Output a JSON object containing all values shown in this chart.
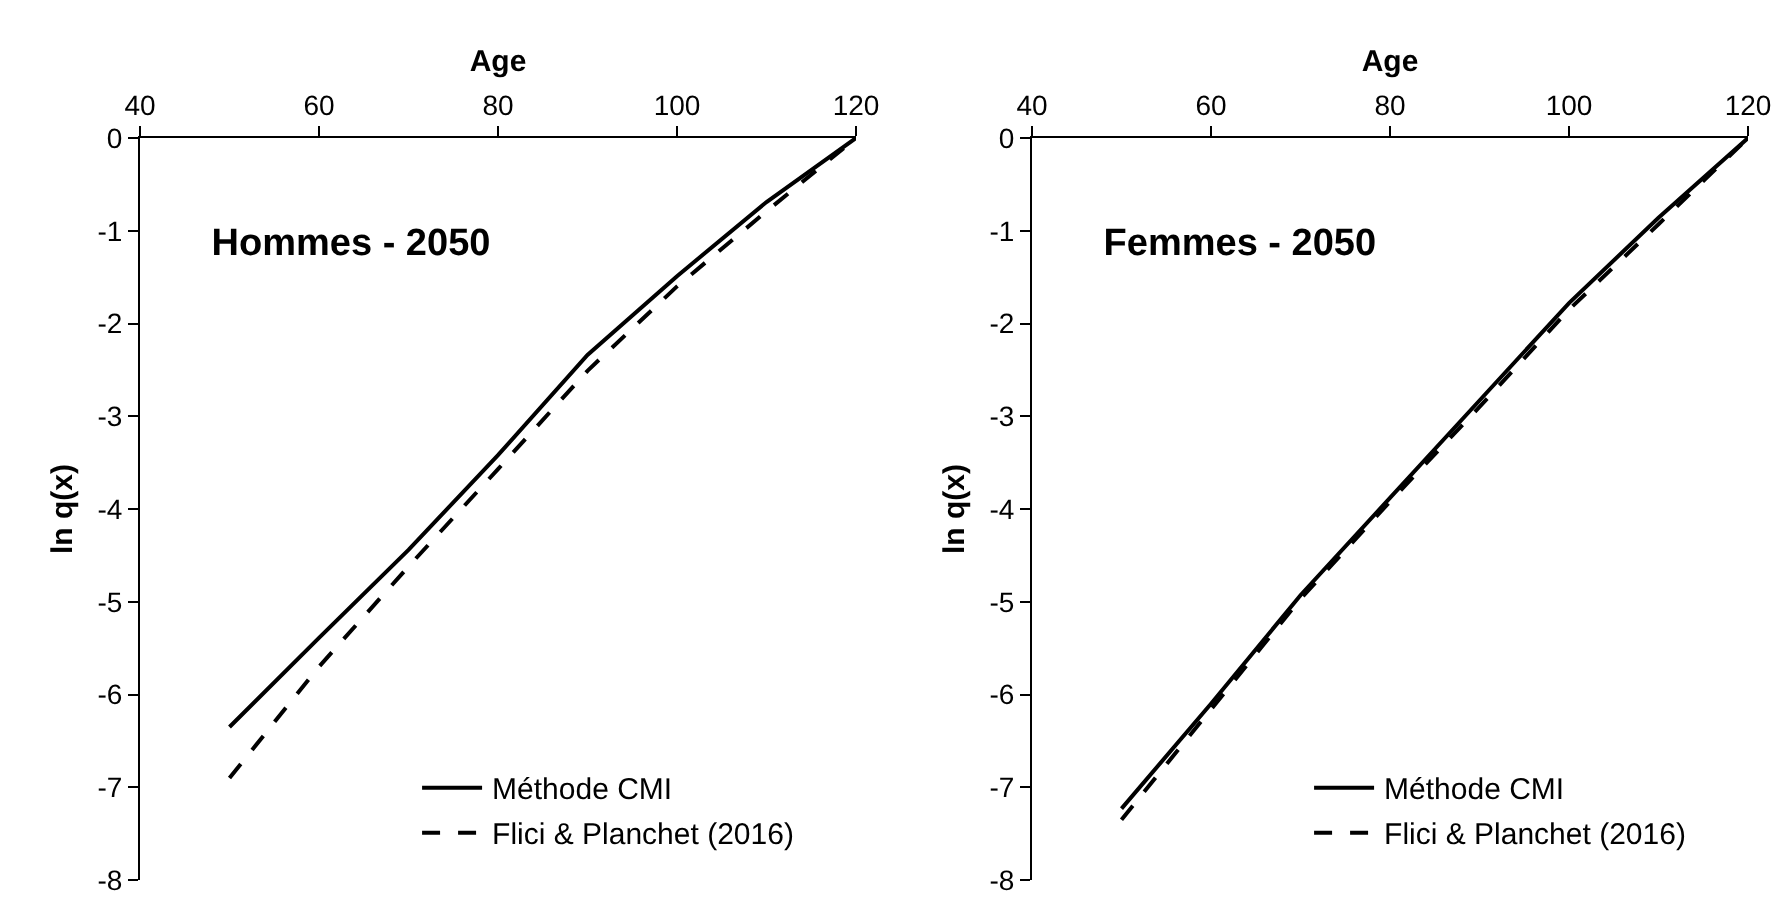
{
  "chart_data": [
    {
      "type": "line",
      "title": "Hommes - 2050",
      "xlabel": "Age",
      "ylabel": "ln q(x)",
      "x": [
        50,
        60,
        70,
        80,
        90,
        100,
        110,
        120
      ],
      "xlim": [
        40,
        120
      ],
      "xticks": [
        40,
        60,
        80,
        100,
        120
      ],
      "ylim": [
        -8,
        0
      ],
      "yticks": [
        -8,
        -7,
        -6,
        -5,
        -4,
        -3,
        -2,
        -1,
        0
      ],
      "grid": false,
      "legend": "bottom right",
      "marker": "none",
      "series": [
        {
          "name": "Méthode CMI",
          "color": "#000000",
          "line_style": "solid",
          "values": [
            -6.35,
            -5.39,
            -4.44,
            -3.42,
            -2.34,
            -1.49,
            -0.69,
            0
          ]
        },
        {
          "name": "Flici & Planchet (2016)",
          "color": "#000000",
          "line_style": "dashed",
          "values": [
            -6.9,
            -5.7,
            -4.62,
            -3.57,
            -2.51,
            -1.6,
            -0.79,
            0
          ]
        }
      ]
    },
    {
      "type": "line",
      "title": "Femmes - 2050",
      "xlabel": "Age",
      "ylabel": "ln q(x)",
      "x": [
        50,
        60,
        70,
        80,
        90,
        100,
        110,
        120
      ],
      "xlim": [
        40,
        120
      ],
      "xticks": [
        40,
        60,
        80,
        100,
        120
      ],
      "ylim": [
        -8,
        0
      ],
      "yticks": [
        -8,
        -7,
        -6,
        -5,
        -4,
        -3,
        -2,
        -1,
        0
      ],
      "grid": false,
      "legend": "bottom right",
      "marker": "none",
      "series": [
        {
          "name": "Méthode CMI",
          "color": "#000000",
          "line_style": "solid",
          "values": [
            -7.23,
            -6.1,
            -4.93,
            -3.88,
            -2.83,
            -1.78,
            -0.86,
            0
          ]
        },
        {
          "name": "Flici & Planchet (2016)",
          "color": "#000000",
          "line_style": "dashed",
          "values": [
            -7.35,
            -6.16,
            -4.97,
            -3.92,
            -2.9,
            -1.85,
            -0.93,
            0
          ]
        }
      ]
    }
  ]
}
